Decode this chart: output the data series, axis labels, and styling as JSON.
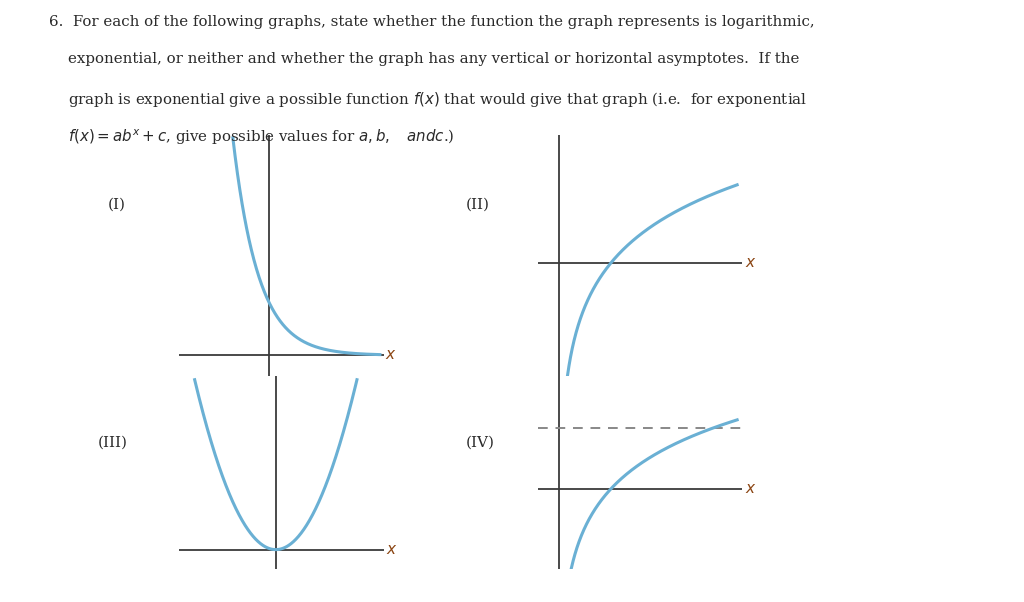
{
  "bg_color": "#ffffff",
  "text_color": "#2a2a2a",
  "curve_color": "#6ab0d4",
  "axis_color": "#3a3a3a",
  "dash_color": "#888888",
  "label_color": "#8B4513",
  "graph_labels": [
    "(I)",
    "(II)",
    "(III)",
    "(IV)"
  ],
  "line1": "6.  For each of the following graphs, state whether the function the graph represents is logarithmic,",
  "line2": "    exponential, or neither and whether the graph has any vertical or horizontal asymptotes.  If the",
  "line3": "    graph is exponential give a possible function $f(x)$ that would give that graph (i.e.  for exponential",
  "line4": "    $f(x) = ab^x + c$, give possible values for $a, b,$   $andc$."
}
